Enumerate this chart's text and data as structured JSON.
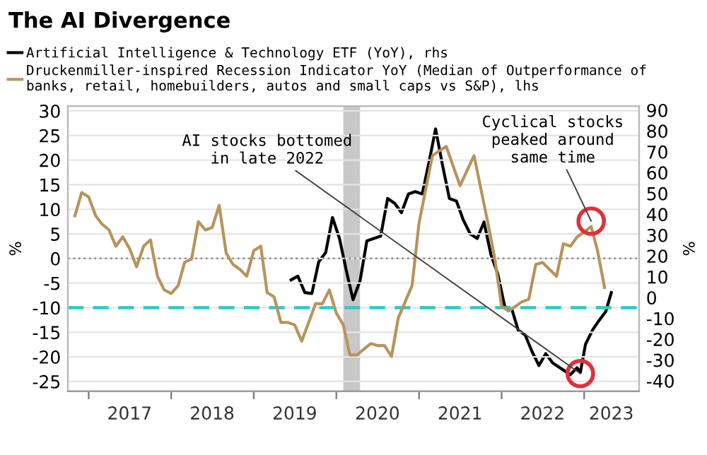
{
  "chart_data": {
    "type": "line",
    "title": "The AI Divergence",
    "ylabel": "%",
    "y2label": "%",
    "series": [
      {
        "name": "Artificial Intelligence & Technology ETF (YoY), rhs",
        "color": "#000000",
        "axis": "y2",
        "x": [
          "2019-06-15",
          "2019-07-15",
          "2019-08-15",
          "2019-09-15",
          "2019-10-15",
          "2019-11-15",
          "2019-12-15",
          "2020-01-15",
          "2020-02-15",
          "2020-03-15",
          "2020-04-15",
          "2020-05-15",
          "2020-06-15",
          "2020-07-15",
          "2020-08-15",
          "2020-09-15",
          "2020-10-15",
          "2020-11-15",
          "2020-12-15",
          "2021-01-15",
          "2021-02-15",
          "2021-03-15",
          "2021-04-15",
          "2021-05-15",
          "2021-06-15",
          "2021-07-15",
          "2021-08-15",
          "2021-09-15",
          "2021-10-15",
          "2021-11-15",
          "2021-12-15",
          "2022-01-15",
          "2022-02-15",
          "2022-03-15",
          "2022-04-15",
          "2022-05-15",
          "2022-06-15",
          "2022-07-15",
          "2022-08-15",
          "2022-10-01",
          "2022-11-01",
          "2022-12-01",
          "2022-12-15",
          "2023-01-07",
          "2023-02-07",
          "2023-03-07",
          "2023-04-07",
          "2023-05-01"
        ],
        "values": [
          8.5,
          10.3,
          2.4,
          2,
          17.1,
          21.6,
          38.5,
          28.4,
          12.6,
          -1,
          8.1,
          27.2,
          28.4,
          29.5,
          47.6,
          45.3,
          40.8,
          49.8,
          50.9,
          49.8,
          65.6,
          81,
          63.4,
          47.6,
          46.4,
          37.4,
          30.6,
          28.4,
          36.3,
          20.5,
          11.4,
          -4.4,
          -5.5,
          -15.6,
          -17.9,
          -25.8,
          -32.6,
          -26.9,
          -31.4,
          -34.8,
          -37,
          -33.7,
          -36,
          -22.4,
          -15.6,
          -11.1,
          -6.6,
          2.4
        ]
      },
      {
        "name": "Druckenmiller-inspired Recession Indicator YoY (Median of Outperformance of\nbanks, retail, homebuilders, autos and small caps vs S&P), lhs",
        "color": "#b8935a",
        "axis": "y",
        "x": [
          "2016-11",
          "2016-12",
          "2017-01",
          "2017-02",
          "2017-03",
          "2017-04",
          "2017-05",
          "2017-06",
          "2017-07",
          "2017-08",
          "2017-09",
          "2017-10",
          "2017-11",
          "2017-12",
          "2018-01",
          "2018-02",
          "2018-03",
          "2018-04",
          "2018-05",
          "2018-06",
          "2018-07",
          "2018-08",
          "2018-09",
          "2018-10",
          "2018-11",
          "2018-12",
          "2019-01",
          "2019-02",
          "2019-03",
          "2019-04",
          "2019-05",
          "2019-06",
          "2019-07",
          "2019-08",
          "2019-09",
          "2019-10",
          "2019-11",
          "2019-12",
          "2020-01",
          "2020-02",
          "2020-03",
          "2020-04",
          "2020-06",
          "2020-07",
          "2020-08",
          "2020-09",
          "2020-10",
          "2020-12",
          "2021-01",
          "2021-03",
          "2021-04",
          "2021-05",
          "2021-07",
          "2021-09",
          "2021-11",
          "2021-12",
          "2022-01",
          "2022-02",
          "2022-04",
          "2022-05",
          "2022-06",
          "2022-07",
          "2022-09",
          "2022-10",
          "2022-11",
          "2022-12",
          "2023-01",
          "2023-02",
          "2023-03",
          "2023-04"
        ],
        "values": [
          8.7,
          13.4,
          12.5,
          8.7,
          7,
          5.8,
          2.5,
          4.4,
          2,
          -1.7,
          2.5,
          3.8,
          -3.6,
          -6.4,
          -7.1,
          -5.5,
          -0.8,
          -0.1,
          7.5,
          5.8,
          6.3,
          10.8,
          1.1,
          -1.2,
          -2.2,
          -3.6,
          1.6,
          2.5,
          -6.9,
          -7.8,
          -13,
          -13,
          -13.5,
          -16.8,
          -13,
          -9.2,
          -9.2,
          -6.4,
          -11.1,
          -13.5,
          -19.6,
          -19.6,
          -17.3,
          -17.7,
          -17.7,
          -19.9,
          -12.1,
          -5.5,
          7.3,
          20.9,
          21.9,
          22.8,
          14.8,
          20.9,
          7.3,
          0.2,
          -9.7,
          -10.7,
          -8.8,
          -8.3,
          -1.2,
          -0.8,
          -3.6,
          3,
          2.5,
          4.4,
          5.4,
          6.5,
          1.6,
          -5.9
        ]
      }
    ],
    "xlim": [
      "2016-10-01",
      "2023-09-01"
    ],
    "xticks": [
      {
        "value": "2017-01-01",
        "label": null
      },
      {
        "value": "2017-07-01",
        "label": "2017"
      },
      {
        "value": "2018-01-01",
        "label": null
      },
      {
        "value": "2018-07-01",
        "label": "2018"
      },
      {
        "value": "2019-01-01",
        "label": null
      },
      {
        "value": "2019-07-01",
        "label": "2019"
      },
      {
        "value": "2020-01-01",
        "label": null
      },
      {
        "value": "2020-07-01",
        "label": "2020"
      },
      {
        "value": "2021-01-01",
        "label": null
      },
      {
        "value": "2021-07-01",
        "label": "2021"
      },
      {
        "value": "2022-01-01",
        "label": null
      },
      {
        "value": "2022-07-01",
        "label": "2022"
      },
      {
        "value": "2023-01-01",
        "label": null
      },
      {
        "value": "2023-05-01",
        "label": "2023"
      }
    ],
    "ylim": [
      -27,
      31
    ],
    "yticks": [
      -25,
      -20,
      -15,
      -10,
      -5,
      0,
      5,
      10,
      15,
      20,
      25,
      30
    ],
    "y2lim": [
      -45,
      92
    ],
    "y2ticks": [
      -40,
      -30,
      -20,
      -10,
      0,
      10,
      20,
      30,
      40,
      50,
      60,
      70,
      80,
      90
    ],
    "ref_lines": [
      {
        "axis": "y",
        "value": 0,
        "color": "#888888",
        "line_style": "dotted"
      },
      {
        "axis": "y",
        "value": -10,
        "color": "#2ec8c8",
        "line_style": "dashed"
      }
    ],
    "bands": [
      {
        "axis": "x",
        "from": "2020-02-01",
        "to": "2020-04-15",
        "color": "#c8c8c8"
      }
    ],
    "annotations": [
      {
        "text": "AI stocks bottomed\nin late 2022",
        "x": "2022-12-15",
        "y": -23.4
      },
      {
        "text": "Cyclical stocks\npeaked around\nsame time",
        "x": "2023-02-01",
        "y": 7.6
      }
    ],
    "grid": "y",
    "legend": "top",
    "line_style": "solid"
  }
}
